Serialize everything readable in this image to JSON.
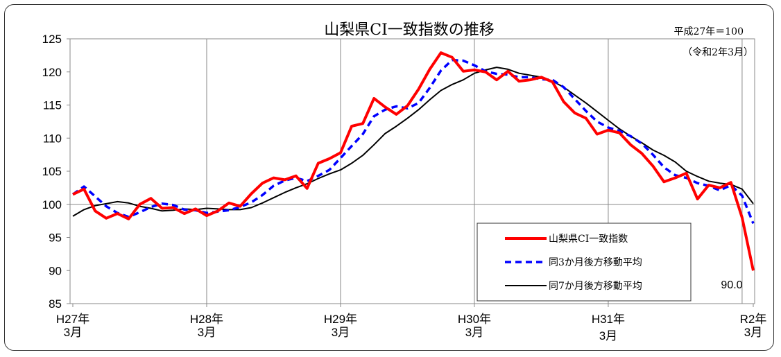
{
  "chart_data": {
    "type": "line",
    "title": "山梨県CI一致指数の推移",
    "base_note": "平成27年＝100",
    "date_note": "（令和2年3月）",
    "ylim": [
      85,
      125
    ],
    "yticks": [
      85,
      90,
      95,
      100,
      105,
      110,
      115,
      120,
      125
    ],
    "x_tick_labels": [
      {
        "line1": "H27年",
        "line2": "3月"
      },
      {
        "line1": "H28年",
        "line2": "3月"
      },
      {
        "line1": "H29年",
        "line2": "3月"
      },
      {
        "line1": "H30年",
        "line2": "3月"
      },
      {
        "line1": "H31年",
        "line2": "3月"
      },
      {
        "line1": "R2年",
        "line2": "3月"
      }
    ],
    "last_value_label": "90.0",
    "legend": [
      "山梨県CI一致指数",
      "同3か月後方移動平均",
      "同7か月後方移動平均"
    ],
    "series": [
      {
        "name": "山梨県CI一致指数",
        "color": "#ff0000",
        "values": [
          101.5,
          102.3,
          99.0,
          97.9,
          98.6,
          97.8,
          100.0,
          100.9,
          99.4,
          99.5,
          98.6,
          99.3,
          98.3,
          99.0,
          100.2,
          99.7,
          101.6,
          103.2,
          104.0,
          103.7,
          104.3,
          102.4,
          106.2,
          106.9,
          107.8,
          111.8,
          112.2,
          116.0,
          114.7,
          113.6,
          114.9,
          117.4,
          120.4,
          122.9,
          122.2,
          120.1,
          120.3,
          120.0,
          118.8,
          120.1,
          118.6,
          118.8,
          119.2,
          118.5,
          115.5,
          113.8,
          113.0,
          110.6,
          111.2,
          110.8,
          109.0,
          107.7,
          105.8,
          103.4,
          104.0,
          104.7,
          100.8,
          102.9,
          102.5,
          103.3,
          98.0,
          90.0
        ]
      },
      {
        "name": "同3か月後方移動平均",
        "color": "#0000ff",
        "values": [
          101.5,
          102.7,
          101.2,
          99.7,
          98.7,
          98.1,
          98.8,
          99.6,
          100.1,
          99.9,
          99.2,
          99.1,
          98.7,
          98.9,
          99.1,
          99.6,
          100.3,
          101.4,
          102.8,
          103.6,
          104.0,
          103.5,
          104.3,
          105.2,
          107.0,
          108.8,
          110.6,
          113.3,
          114.3,
          114.8,
          114.5,
          115.3,
          117.6,
          120.2,
          121.8,
          121.7,
          121.0,
          120.1,
          119.7,
          119.6,
          119.2,
          119.2,
          118.9,
          118.8,
          117.7,
          115.9,
          114.1,
          112.5,
          111.6,
          111.1,
          110.3,
          109.2,
          107.5,
          105.6,
          104.4,
          104.0,
          103.2,
          102.8,
          102.1,
          102.9,
          101.3,
          97.1
        ]
      },
      {
        "name": "同7か月後方移動平均",
        "color": "#000000",
        "values": [
          98.2,
          99.2,
          99.8,
          100.1,
          100.4,
          100.2,
          99.7,
          99.4,
          99.0,
          99.1,
          99.3,
          99.2,
          99.4,
          99.3,
          99.2,
          99.2,
          99.5,
          100.2,
          101.0,
          101.8,
          102.5,
          103.1,
          103.9,
          104.6,
          105.2,
          106.2,
          107.4,
          109.0,
          110.7,
          111.8,
          113.0,
          114.3,
          115.8,
          117.2,
          118.1,
          118.8,
          119.8,
          120.3,
          120.7,
          120.4,
          119.8,
          119.5,
          119.2,
          118.6,
          117.7,
          116.5,
          115.3,
          114.0,
          112.7,
          111.4,
          110.3,
          109.3,
          108.2,
          107.4,
          106.4,
          105.0,
          104.2,
          103.5,
          103.2,
          103.0,
          102.3,
          100.1
        ]
      }
    ]
  }
}
